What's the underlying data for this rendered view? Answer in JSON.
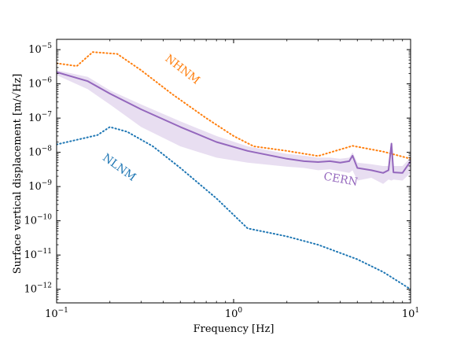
{
  "chart_data": {
    "type": "line",
    "xlabel": "Frequency [Hz]",
    "ylabel": "Surface vertical displacement [m/√Hz]",
    "xscale": "log",
    "yscale": "log",
    "xlim": [
      0.1,
      10
    ],
    "ylim": [
      4e-13,
      2e-05
    ],
    "x_ticks": [
      {
        "value": 0.1,
        "base": "10",
        "exp": "−1"
      },
      {
        "value": 1,
        "base": "10",
        "exp": "0"
      },
      {
        "value": 10,
        "base": "10",
        "exp": "1"
      }
    ],
    "y_ticks": [
      {
        "value": 1e-12,
        "base": "10",
        "exp": "−12"
      },
      {
        "value": 1e-11,
        "base": "10",
        "exp": "−11"
      },
      {
        "value": 1e-10,
        "base": "10",
        "exp": "−10"
      },
      {
        "value": 1e-09,
        "base": "10",
        "exp": "−9"
      },
      {
        "value": 1e-08,
        "base": "10",
        "exp": "−8"
      },
      {
        "value": 1e-07,
        "base": "10",
        "exp": "−7"
      },
      {
        "value": 1e-06,
        "base": "10",
        "exp": "−6"
      },
      {
        "value": 1e-05,
        "base": "10",
        "exp": "−5"
      }
    ],
    "grid": false,
    "series": [
      {
        "name": "NHNM",
        "color": "#ff7f0e",
        "style": "dotted",
        "x": [
          0.1,
          0.13,
          0.16,
          0.22,
          0.3,
          0.45,
          0.7,
          1.0,
          1.3,
          2.0,
          3.0,
          4.7,
          7.0,
          10
        ],
        "y": [
          4e-06,
          3.3e-06,
          8.5e-06,
          7.5e-06,
          2.5e-06,
          5e-07,
          1e-07,
          3e-08,
          1.5e-08,
          1.1e-08,
          7.8e-09,
          1.55e-08,
          1.05e-08,
          6.5e-09
        ]
      },
      {
        "name": "NLNM",
        "color": "#1f77b4",
        "style": "dotted",
        "x": [
          0.1,
          0.17,
          0.2,
          0.25,
          0.35,
          0.5,
          0.8,
          1.2,
          2.0,
          3.0,
          5.0,
          7.0,
          10
        ],
        "y": [
          1.7e-08,
          3.2e-08,
          5.5e-08,
          4e-08,
          1.5e-08,
          3.5e-09,
          4.5e-10,
          6e-11,
          3.5e-11,
          2e-11,
          7.5e-12,
          3.2e-12,
          1e-12
        ]
      },
      {
        "name": "CERN",
        "color": "#9467bd",
        "style": "solid",
        "x": [
          0.1,
          0.15,
          0.2,
          0.3,
          0.5,
          0.8,
          1.2,
          2.0,
          2.5,
          3.0,
          3.5,
          4.0,
          4.5,
          4.7,
          5.0,
          6.0,
          7.0,
          7.5,
          7.8,
          8.0,
          9.0,
          10
        ],
        "y": [
          2.2e-06,
          1.2e-06,
          5.2e-07,
          1.8e-07,
          5.5e-08,
          2e-08,
          1.1e-08,
          6.5e-09,
          5.5e-09,
          5.2e-09,
          5.5e-09,
          5e-09,
          5.5e-09,
          8e-09,
          3.5e-09,
          3e-09,
          2.5e-09,
          3e-09,
          1.8e-08,
          2.6e-09,
          2.5e-09,
          5.5e-09
        ],
        "band_upper": [
          2.5e-06,
          1.6e-06,
          6.5e-07,
          2.5e-07,
          8e-08,
          3e-08,
          1.5e-08,
          9e-09,
          8e-09,
          7e-09,
          7e-09,
          6.5e-09,
          7e-09,
          1e-08,
          5e-09,
          4.5e-09,
          4e-09,
          4e-09,
          1.8e-08,
          4e-09,
          4e-09,
          7e-09
        ],
        "band_lower": [
          1.8e-06,
          7e-07,
          2.5e-07,
          5.5e-08,
          1.5e-08,
          7e-09,
          5e-09,
          3.8e-09,
          3.5e-09,
          3e-09,
          3.2e-09,
          2.8e-09,
          2.5e-09,
          3e-09,
          1.5e-09,
          1.8e-09,
          1.2e-09,
          1.6e-09,
          1.5e-09,
          1.6e-09,
          1.5e-09,
          2.5e-09
        ]
      }
    ],
    "annotations": [
      {
        "text": "NHNM",
        "series": "NHNM",
        "color": "#ff7f0e",
        "x": 0.5,
        "y": 2.2e-06,
        "rotation": 38
      },
      {
        "text": "NLNM",
        "series": "NLNM",
        "color": "#1f77b4",
        "x": 0.22,
        "y": 3e-09,
        "rotation": 36
      },
      {
        "text": "CERN",
        "series": "CERN",
        "color": "#9467bd",
        "x": 4.0,
        "y": 1.3e-09,
        "rotation": 10
      }
    ]
  }
}
